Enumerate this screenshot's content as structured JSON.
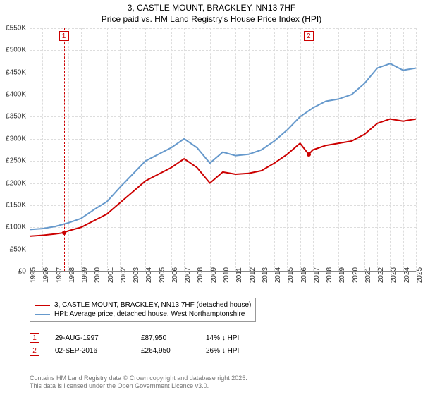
{
  "title_line1": "3, CASTLE MOUNT, BRACKLEY, NN13 7HF",
  "title_line2": "Price paid vs. HM Land Registry's House Price Index (HPI)",
  "chart": {
    "type": "line",
    "xlim": [
      1995,
      2025
    ],
    "ylim": [
      0,
      550000
    ],
    "ytick_step": 50000,
    "ytick_fmt_suffix": "K",
    "ytick_fmt_prefix": "£",
    "x_years": [
      1995,
      1996,
      1997,
      1998,
      1999,
      2000,
      2001,
      2002,
      2003,
      2004,
      2005,
      2006,
      2007,
      2008,
      2009,
      2010,
      2011,
      2012,
      2013,
      2014,
      2015,
      2016,
      2017,
      2018,
      2019,
      2020,
      2021,
      2022,
      2023,
      2024,
      2025
    ],
    "grid_color": "#dddddd",
    "axis_color": "#888888",
    "background_color": "#ffffff",
    "series": [
      {
        "name": "price_paid",
        "label": "3, CASTLE MOUNT, BRACKLEY, NN13 7HF (detached house)",
        "color": "#cc0000",
        "width": 2,
        "values_by_year": {
          "1995": 80000,
          "1996": 82000,
          "1997": 85000,
          "1997.66": 87950,
          "1998": 92000,
          "1999": 100000,
          "2000": 115000,
          "2001": 130000,
          "2002": 155000,
          "2003": 180000,
          "2004": 205000,
          "2005": 220000,
          "2006": 235000,
          "2007": 255000,
          "2008": 235000,
          "2009": 200000,
          "2010": 225000,
          "2011": 220000,
          "2012": 222000,
          "2013": 228000,
          "2014": 245000,
          "2015": 265000,
          "2016": 290000,
          "2016.67": 264950,
          "2017": 275000,
          "2018": 285000,
          "2019": 290000,
          "2020": 295000,
          "2021": 310000,
          "2022": 335000,
          "2023": 345000,
          "2024": 340000,
          "2025": 345000
        }
      },
      {
        "name": "hpi",
        "label": "HPI: Average price, detached house, West Northamptonshire",
        "color": "#6699cc",
        "width": 2,
        "values_by_year": {
          "1995": 95000,
          "1996": 97000,
          "1997": 102000,
          "1998": 110000,
          "1999": 120000,
          "2000": 140000,
          "2001": 158000,
          "2002": 190000,
          "2003": 220000,
          "2004": 250000,
          "2005": 265000,
          "2006": 280000,
          "2007": 300000,
          "2008": 280000,
          "2009": 245000,
          "2010": 270000,
          "2011": 262000,
          "2012": 265000,
          "2013": 275000,
          "2014": 295000,
          "2015": 320000,
          "2016": 350000,
          "2017": 370000,
          "2018": 385000,
          "2019": 390000,
          "2020": 400000,
          "2021": 425000,
          "2022": 460000,
          "2023": 470000,
          "2024": 455000,
          "2025": 460000
        }
      }
    ],
    "markers": [
      {
        "n": "1",
        "year": 1997.66,
        "value": 87950
      },
      {
        "n": "2",
        "year": 2016.67,
        "value": 264950
      }
    ]
  },
  "legend": {
    "items": [
      {
        "color": "#cc0000",
        "label": "3, CASTLE MOUNT, BRACKLEY, NN13 7HF (detached house)"
      },
      {
        "color": "#6699cc",
        "label": "HPI: Average price, detached house, West Northamptonshire"
      }
    ]
  },
  "sales": [
    {
      "n": "1",
      "date": "29-AUG-1997",
      "price": "£87,950",
      "delta": "14% ↓ HPI"
    },
    {
      "n": "2",
      "date": "02-SEP-2016",
      "price": "£264,950",
      "delta": "26% ↓ HPI"
    }
  ],
  "attribution_line1": "Contains HM Land Registry data © Crown copyright and database right 2025.",
  "attribution_line2": "This data is licensed under the Open Government Licence v3.0."
}
